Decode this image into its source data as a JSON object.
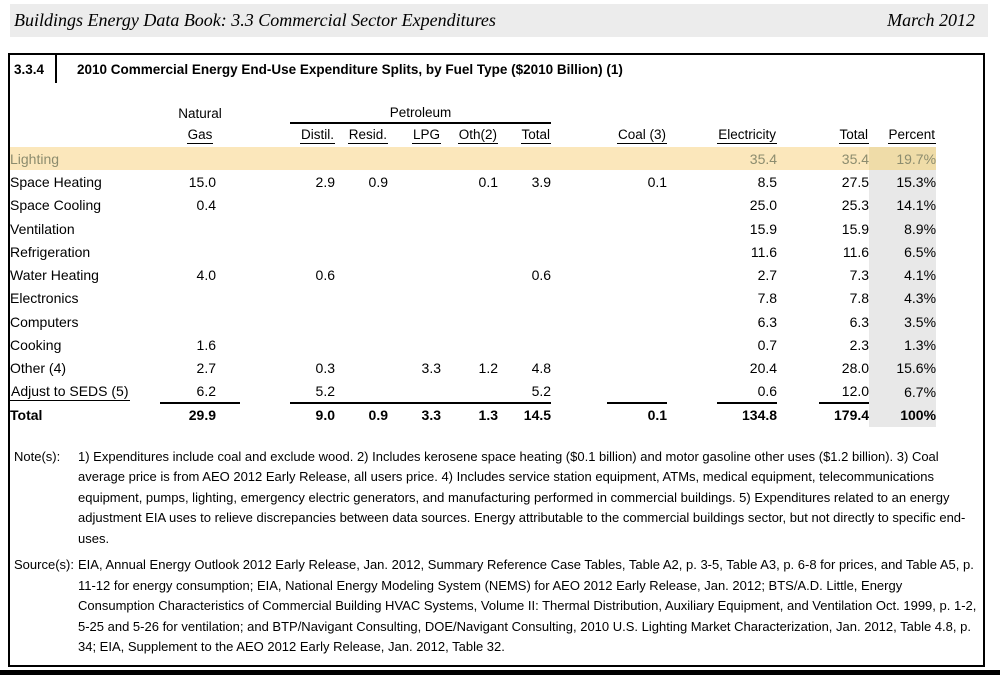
{
  "page_header": {
    "title": "Buildings Energy Data Book:  3.3 Commercial Sector Expenditures",
    "date": "March 2012"
  },
  "table": {
    "number": "3.3.4",
    "title": "2010 Commercial Energy End-Use Expenditure Splits, by Fuel Type ($2010 Billion) (1)",
    "headers": {
      "natural": "Natural",
      "gas": "Gas",
      "petroleum": "Petroleum",
      "distil": "Distil.",
      "resid": "Resid.",
      "lpg": "LPG",
      "oth": "Oth(2)",
      "pet_total": "Total",
      "coal": "Coal (3)",
      "electricity": "Electricity",
      "total": "Total",
      "percent": "Percent"
    },
    "rows": [
      {
        "label": "Lighting",
        "elec": "35.4",
        "total": "35.4",
        "pct": "19.7%",
        "highlight": true
      },
      {
        "label": "Space Heating",
        "ng": "15.0",
        "distil": "2.9",
        "resid": "0.9",
        "oth": "0.1",
        "pet_total": "3.9",
        "coal": "0.1",
        "elec": "8.5",
        "total": "27.5",
        "pct": "15.3%"
      },
      {
        "label": "Space Cooling",
        "ng": "0.4",
        "elec": "25.0",
        "total": "25.3",
        "pct": "14.1%"
      },
      {
        "label": "Ventilation",
        "elec": "15.9",
        "total": "15.9",
        "pct": "8.9%"
      },
      {
        "label": "Refrigeration",
        "elec": "11.6",
        "total": "11.6",
        "pct": "6.5%"
      },
      {
        "label": "Water Heating",
        "ng": "4.0",
        "distil": "0.6",
        "pet_total": "0.6",
        "elec": "2.7",
        "total": "7.3",
        "pct": "4.1%"
      },
      {
        "label": "Electronics",
        "elec": "7.8",
        "total": "7.8",
        "pct": "4.3%"
      },
      {
        "label": "Computers",
        "elec": "6.3",
        "total": "6.3",
        "pct": "3.5%"
      },
      {
        "label": "Cooking",
        "ng": "1.6",
        "elec": "0.7",
        "total": "2.3",
        "pct": "1.3%"
      },
      {
        "label": "Other (4)",
        "ng": "2.7",
        "distil": "0.3",
        "lpg": "3.3",
        "oth": "1.2",
        "pet_total": "4.8",
        "elec": "20.4",
        "total": "28.0",
        "pct": "15.6%"
      },
      {
        "label": "Adjust to SEDS (5)",
        "ng": "6.2",
        "distil": "5.2",
        "pet_total": "5.2",
        "elec": "0.6",
        "total": "12.0",
        "pct": "6.7%",
        "underline_label": true
      }
    ],
    "total_row": {
      "label": "Total",
      "ng": "29.9",
      "distil": "9.0",
      "resid": "0.9",
      "lpg": "3.3",
      "oth": "1.3",
      "pet_total": "14.5",
      "coal": "0.1",
      "elec": "134.8",
      "total": "179.4",
      "pct": "100%"
    }
  },
  "notes": {
    "label": "Note(s):",
    "text": "1) Expenditures include coal and exclude wood. 2) Includes kerosene space heating ($0.1 billion) and motor gasoline other uses ($1.2 billion). 3) Coal average price is from AEO 2012 Early Release, all users price. 4) Includes service station equipment, ATMs, medical equipment, telecommunications equipment, pumps, lighting, emergency electric generators, and manufacturing performed in commercial buildings. 5) Expenditures related to an energy adjustment EIA uses to relieve discrepancies between data sources. Energy attributable to the commercial buildings sector, but not directly to specific end-uses."
  },
  "sources": {
    "label": "Source(s):",
    "text": "EIA, Annual Energy Outlook 2012 Early Release, Jan. 2012, Summary Reference Case Tables, Table A2, p. 3-5, Table A3, p. 6-8 for prices, and Table A5, p. 11-12 for energy consumption; EIA, National Energy Modeling System (NEMS) for AEO 2012 Early Release, Jan. 2012; BTS/A.D. Little, Energy Consumption Characteristics of Commercial Building HVAC Systems, Volume II: Thermal Distribution, Auxiliary Equipment, and Ventilation Oct. 1999, p. 1-2, 5-25 and 5-26 for ventilation; and BTP/Navigant Consulting, DOE/Navigant Consulting, 2010 U.S. Lighting Market Characterization, Jan. 2012, Table 4.8, p. 34; EIA, Supplement to the AEO 2012 Early Release,  Jan. 2012, Table 32."
  },
  "colors": {
    "header_band_bg": "#ECECEC",
    "highlight_row_bg": "#FBE7BB",
    "highlight_row_text": "#8C8C6E",
    "highlight_percent_bg": "#EFDCA8",
    "percent_col_bg": "#E8E8E8",
    "border_black": "#000000"
  }
}
